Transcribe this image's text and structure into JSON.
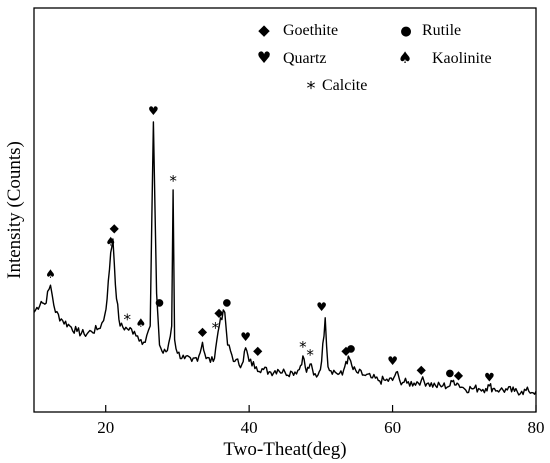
{
  "chart_data": {
    "type": "line",
    "title": "",
    "xlabel": "Two-Theat(deg)",
    "ylabel": "Intensity   (Counts)",
    "xlim": [
      10,
      80
    ],
    "x_ticks": [
      20,
      40,
      60,
      80
    ],
    "y_ticks_shown": false,
    "grid": false,
    "colors": {
      "line": "#000000",
      "axes": "#000000",
      "background": "#ffffff"
    },
    "legend": {
      "placement": "top-right",
      "entries": [
        {
          "symbol": "◆",
          "icon": "diamond-icon",
          "label": "Goethite"
        },
        {
          "symbol": "●",
          "icon": "circle-icon",
          "label": "Rutile"
        },
        {
          "symbol": "♥",
          "icon": "heart-icon",
          "label": "Quartz"
        },
        {
          "symbol": "♠",
          "icon": "spade-icon",
          "label": "Kaolinite"
        },
        {
          "symbol": "*",
          "icon": "asterisk-icon",
          "label": "Calcite"
        }
      ]
    },
    "series": [
      {
        "x": [
          10,
          11,
          11.5,
          12.3,
          13,
          14,
          15,
          16,
          17,
          18,
          19,
          19.7,
          20.2,
          20.7,
          21,
          21.2,
          21.5,
          22,
          23,
          24,
          24.9,
          25.5,
          26.2,
          26.65,
          27.1,
          27.5,
          28,
          28.6,
          29.2,
          29.4,
          29.6,
          30,
          31,
          32,
          33,
          33.5,
          34,
          35,
          35.5,
          36,
          36.6,
          37,
          38,
          39,
          39.5,
          40,
          41,
          42,
          43,
          44,
          45,
          46,
          47,
          47.5,
          48,
          48.5,
          49,
          49.6,
          50.1,
          50.6,
          51,
          52,
          53,
          53.5,
          54,
          54.5,
          55,
          56,
          57,
          58,
          59,
          60,
          60.5,
          61,
          62,
          63,
          64,
          65,
          66,
          67,
          68,
          68.5,
          69,
          70,
          71,
          72,
          73,
          73.5,
          74,
          75,
          76,
          77,
          78,
          79,
          80
        ],
        "y": [
          30,
          34,
          33,
          40,
          30,
          27,
          25,
          23,
          22,
          23,
          24,
          27,
          35,
          52,
          57,
          48,
          35,
          25,
          24,
          23,
          20,
          19,
          25,
          100,
          37,
          18,
          15,
          16,
          25,
          75,
          20,
          15,
          13,
          12,
          14,
          19,
          13,
          12,
          20,
          28,
          30,
          18,
          12,
          11,
          17,
          12,
          10,
          9,
          8,
          9,
          8,
          8,
          9,
          14,
          8,
          11,
          7,
          7,
          12,
          28,
          10,
          8,
          7,
          12,
          13,
          9,
          8,
          7,
          6,
          5,
          5,
          5,
          8,
          5,
          4,
          4,
          5,
          4,
          3,
          3,
          3,
          5,
          4,
          2,
          2,
          2,
          2,
          3,
          2,
          1.5,
          1.5,
          1,
          1,
          1,
          1
        ]
      }
    ],
    "peak_markers": [
      {
        "x": 12.3,
        "y": 40,
        "symbol": "♠"
      },
      {
        "x": 20.7,
        "y": 52,
        "symbol": "♠"
      },
      {
        "x": 21.2,
        "y": 57,
        "symbol": "◆"
      },
      {
        "x": 23.0,
        "y": 24,
        "symbol": "*"
      },
      {
        "x": 24.9,
        "y": 22,
        "symbol": "♠"
      },
      {
        "x": 26.65,
        "y": 100,
        "symbol": "♥"
      },
      {
        "x": 27.5,
        "y": 30,
        "symbol": "●"
      },
      {
        "x": 29.4,
        "y": 75,
        "symbol": "*"
      },
      {
        "x": 33.5,
        "y": 19,
        "symbol": "◆"
      },
      {
        "x": 35.3,
        "y": 21,
        "symbol": "*"
      },
      {
        "x": 35.8,
        "y": 26,
        "symbol": "◆"
      },
      {
        "x": 36.9,
        "y": 30,
        "symbol": "●"
      },
      {
        "x": 39.5,
        "y": 17,
        "symbol": "♥"
      },
      {
        "x": 41.2,
        "y": 12,
        "symbol": "◆"
      },
      {
        "x": 47.5,
        "y": 14,
        "symbol": "*"
      },
      {
        "x": 48.5,
        "y": 11,
        "symbol": "*"
      },
      {
        "x": 50.1,
        "y": 28,
        "symbol": "♥"
      },
      {
        "x": 53.5,
        "y": 12,
        "symbol": "◆"
      },
      {
        "x": 54.2,
        "y": 13,
        "symbol": "●"
      },
      {
        "x": 60.0,
        "y": 8,
        "symbol": "♥"
      },
      {
        "x": 64.0,
        "y": 5,
        "symbol": "◆"
      },
      {
        "x": 68.0,
        "y": 4,
        "symbol": "●"
      },
      {
        "x": 69.2,
        "y": 3,
        "symbol": "◆"
      },
      {
        "x": 73.5,
        "y": 2,
        "symbol": "♥"
      }
    ]
  }
}
